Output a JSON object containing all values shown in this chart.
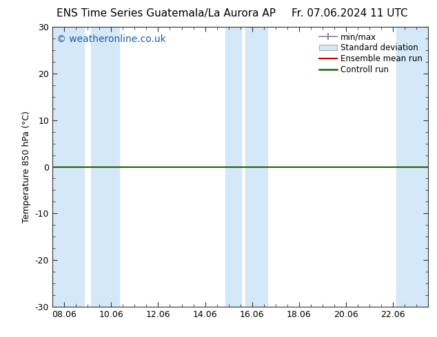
{
  "title_left": "ENS Time Series Guatemala/La Aurora AP",
  "title_right": "Fr. 07.06.2024 11 UTC",
  "ylabel": "Temperature 850 hPa (°C)",
  "ylim": [
    -30,
    30
  ],
  "yticks": [
    -30,
    -20,
    -10,
    0,
    10,
    20,
    30
  ],
  "xlim_start": 7.5,
  "xlim_end": 23.5,
  "xtick_labels": [
    "08.06",
    "10.06",
    "12.06",
    "14.06",
    "16.06",
    "18.06",
    "20.06",
    "22.06"
  ],
  "xtick_positions": [
    8,
    10,
    12,
    14,
    16,
    18,
    20,
    22
  ],
  "watermark": "© weatheronline.co.uk",
  "watermark_color": "#1a5fa8",
  "bg_color": "#ffffff",
  "plot_bg_color": "#ffffff",
  "shaded_band_color": "#d4e8f7",
  "zero_line_color": "#1a6600",
  "ensemble_mean_color": "#cc0000",
  "legend_entries": [
    "min/max",
    "Standard deviation",
    "Ensemble mean run",
    "Controll run"
  ],
  "shaded_x_positions": [
    [
      7.5,
      8.85
    ],
    [
      9.15,
      10.35
    ],
    [
      14.85,
      15.55
    ],
    [
      15.7,
      16.65
    ],
    [
      22.15,
      23.5
    ]
  ],
  "font_size_title": 11,
  "font_size_labels": 9,
  "font_size_ticks": 9,
  "font_size_watermark": 10
}
